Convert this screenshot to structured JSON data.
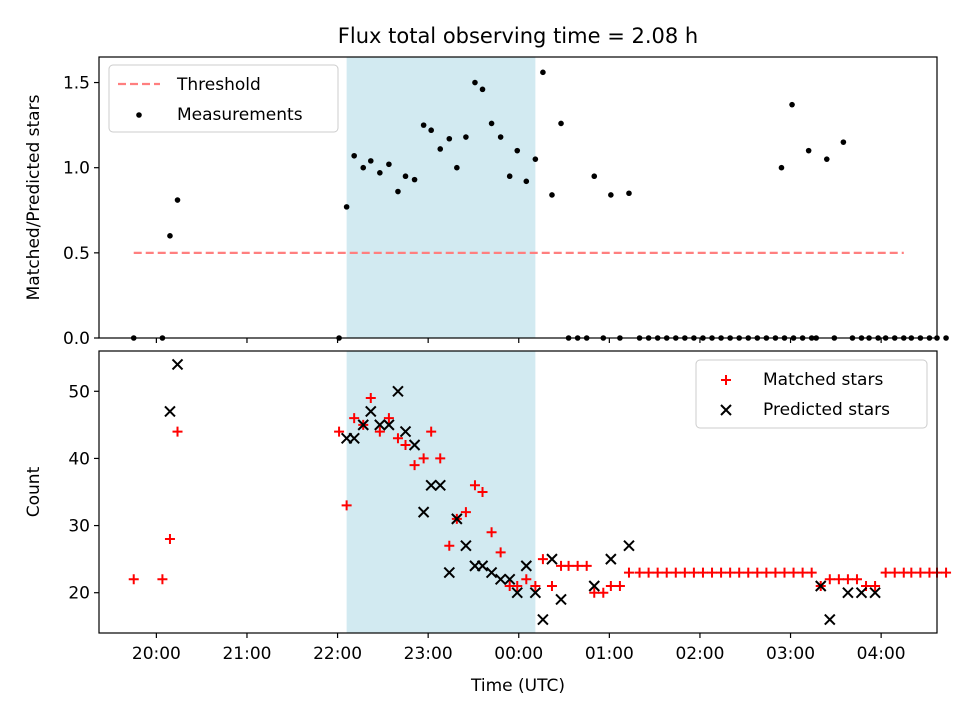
{
  "figure_title": "Flux total observing time = 2.08 h",
  "colors": {
    "threshold": "#ff7f7f",
    "measurement": "#000000",
    "matched": "#ff0000",
    "predicted": "#000000",
    "span": "#add8e6"
  },
  "chart_data": [
    {
      "type": "scatter",
      "title": "Flux total observing time = 2.08 h",
      "xlabel": "",
      "ylabel": "Matched/Predicted stars",
      "ylim": [
        0,
        1.65
      ],
      "yticks": [
        "0.0",
        "0.5",
        "1.0",
        "1.5"
      ],
      "grid": false,
      "legend": "top-left",
      "shaded_span": [
        "22:06",
        "00:11"
      ],
      "threshold": {
        "name": "Threshold",
        "y": 0.5,
        "x": [
          "19:45",
          "04:15"
        ]
      },
      "series": [
        {
          "name": "Measurements",
          "points": [
            [
              "19:45",
              0.0
            ],
            [
              "20:04",
              0.0
            ],
            [
              "20:09",
              0.6
            ],
            [
              "20:14",
              0.81
            ],
            [
              "22:01",
              0.0
            ],
            [
              "22:06",
              0.77
            ],
            [
              "22:11",
              1.07
            ],
            [
              "22:17",
              1.0
            ],
            [
              "22:22",
              1.04
            ],
            [
              "22:28",
              0.97
            ],
            [
              "22:34",
              1.02
            ],
            [
              "22:40",
              0.86
            ],
            [
              "22:45",
              0.95
            ],
            [
              "22:51",
              0.93
            ],
            [
              "22:57",
              1.25
            ],
            [
              "23:02",
              1.22
            ],
            [
              "23:08",
              1.11
            ],
            [
              "23:14",
              1.17
            ],
            [
              "23:19",
              1.0
            ],
            [
              "23:25",
              1.18
            ],
            [
              "23:31",
              1.5
            ],
            [
              "23:36",
              1.46
            ],
            [
              "23:42",
              1.26
            ],
            [
              "23:48",
              1.18
            ],
            [
              "23:54",
              0.95
            ],
            [
              "23:59",
              1.1
            ],
            [
              "00:05",
              0.92
            ],
            [
              "00:11",
              1.05
            ],
            [
              "00:16",
              1.56
            ],
            [
              "00:22",
              0.84
            ],
            [
              "00:28",
              1.26
            ],
            [
              "00:33",
              0.0
            ],
            [
              "00:39",
              0.0
            ],
            [
              "00:45",
              0.0
            ],
            [
              "00:50",
              0.95
            ],
            [
              "00:56",
              0.0
            ],
            [
              "01:01",
              0.84
            ],
            [
              "01:07",
              0.0
            ],
            [
              "01:13",
              0.85
            ],
            [
              "01:20",
              0.0
            ],
            [
              "01:26",
              0.0
            ],
            [
              "01:32",
              0.0
            ],
            [
              "01:38",
              0.0
            ],
            [
              "01:44",
              0.0
            ],
            [
              "01:50",
              0.0
            ],
            [
              "01:56",
              0.0
            ],
            [
              "02:02",
              0.0
            ],
            [
              "02:08",
              0.0
            ],
            [
              "02:14",
              0.0
            ],
            [
              "02:20",
              0.0
            ],
            [
              "02:26",
              0.0
            ],
            [
              "02:32",
              0.0
            ],
            [
              "02:38",
              0.0
            ],
            [
              "02:44",
              0.0
            ],
            [
              "02:50",
              0.0
            ],
            [
              "02:56",
              0.0
            ],
            [
              "03:02",
              0.0
            ],
            [
              "03:08",
              0.0
            ],
            [
              "03:14",
              0.0
            ],
            [
              "02:54",
              1.0
            ],
            [
              "03:01",
              1.37
            ],
            [
              "03:12",
              1.1
            ],
            [
              "03:24",
              1.05
            ],
            [
              "03:35",
              1.15
            ],
            [
              "03:17",
              0.0
            ],
            [
              "03:29",
              0.0
            ],
            [
              "03:41",
              0.0
            ],
            [
              "03:47",
              0.0
            ],
            [
              "03:52",
              0.0
            ],
            [
              "03:58",
              0.0
            ],
            [
              "04:03",
              0.0
            ],
            [
              "04:09",
              0.0
            ],
            [
              "04:15",
              0.0
            ],
            [
              "04:20",
              0.0
            ],
            [
              "04:26",
              0.0
            ],
            [
              "04:32",
              0.0
            ],
            [
              "04:37",
              0.0
            ],
            [
              "04:43",
              0.0
            ]
          ]
        }
      ]
    },
    {
      "type": "scatter",
      "title": "",
      "xlabel": "Time (UTC)",
      "ylabel": "Count",
      "ylim": [
        14,
        56
      ],
      "yticks": [
        "20",
        "30",
        "40",
        "50"
      ],
      "xticks": [
        "20:00",
        "21:00",
        "22:00",
        "23:00",
        "00:00",
        "01:00",
        "02:00",
        "03:00",
        "04:00"
      ],
      "grid": false,
      "legend": "top-right",
      "shaded_span": [
        "22:06",
        "00:11"
      ],
      "series": [
        {
          "name": "Matched stars",
          "marker": "plus",
          "points": [
            [
              "19:45",
              22
            ],
            [
              "20:04",
              22
            ],
            [
              "20:09",
              28
            ],
            [
              "20:14",
              44
            ],
            [
              "22:01",
              44
            ],
            [
              "22:06",
              33
            ],
            [
              "22:11",
              46
            ],
            [
              "22:17",
              45
            ],
            [
              "22:22",
              49
            ],
            [
              "22:28",
              44
            ],
            [
              "22:34",
              46
            ],
            [
              "22:40",
              43
            ],
            [
              "22:45",
              42
            ],
            [
              "22:51",
              39
            ],
            [
              "22:57",
              40
            ],
            [
              "23:02",
              44
            ],
            [
              "23:08",
              40
            ],
            [
              "23:14",
              27
            ],
            [
              "23:19",
              31
            ],
            [
              "23:25",
              32
            ],
            [
              "23:31",
              36
            ],
            [
              "23:36",
              35
            ],
            [
              "23:42",
              29
            ],
            [
              "23:48",
              26
            ],
            [
              "23:54",
              21
            ],
            [
              "23:59",
              21
            ],
            [
              "00:05",
              22
            ],
            [
              "00:11",
              21
            ],
            [
              "00:16",
              25
            ],
            [
              "00:22",
              21
            ],
            [
              "00:28",
              24
            ],
            [
              "00:33",
              24
            ],
            [
              "00:39",
              24
            ],
            [
              "00:45",
              24
            ],
            [
              "00:50",
              20
            ],
            [
              "00:56",
              20
            ],
            [
              "01:01",
              21
            ],
            [
              "01:07",
              21
            ],
            [
              "01:13",
              23
            ],
            [
              "01:20",
              23
            ],
            [
              "01:26",
              23
            ],
            [
              "01:32",
              23
            ],
            [
              "01:38",
              23
            ],
            [
              "01:44",
              23
            ],
            [
              "01:50",
              23
            ],
            [
              "01:56",
              23
            ],
            [
              "02:02",
              23
            ],
            [
              "02:08",
              23
            ],
            [
              "02:14",
              23
            ],
            [
              "02:20",
              23
            ],
            [
              "02:26",
              23
            ],
            [
              "02:32",
              23
            ],
            [
              "02:38",
              23
            ],
            [
              "02:44",
              23
            ],
            [
              "02:50",
              23
            ],
            [
              "02:56",
              23
            ],
            [
              "03:02",
              23
            ],
            [
              "03:08",
              23
            ],
            [
              "03:14",
              23
            ],
            [
              "03:20",
              21
            ],
            [
              "03:26",
              22
            ],
            [
              "03:32",
              22
            ],
            [
              "03:38",
              22
            ],
            [
              "03:44",
              22
            ],
            [
              "03:50",
              21
            ],
            [
              "03:56",
              21
            ],
            [
              "04:03",
              23
            ],
            [
              "04:09",
              23
            ],
            [
              "04:15",
              23
            ],
            [
              "04:20",
              23
            ],
            [
              "04:26",
              23
            ],
            [
              "04:32",
              23
            ],
            [
              "04:37",
              23
            ],
            [
              "04:43",
              23
            ]
          ]
        },
        {
          "name": "Predicted stars",
          "marker": "x",
          "points": [
            [
              "20:09",
              47
            ],
            [
              "20:14",
              54
            ],
            [
              "22:06",
              43
            ],
            [
              "22:11",
              43
            ],
            [
              "22:17",
              45
            ],
            [
              "22:22",
              47
            ],
            [
              "22:28",
              45
            ],
            [
              "22:34",
              45
            ],
            [
              "22:40",
              50
            ],
            [
              "22:45",
              44
            ],
            [
              "22:51",
              42
            ],
            [
              "22:57",
              32
            ],
            [
              "23:02",
              36
            ],
            [
              "23:08",
              36
            ],
            [
              "23:14",
              23
            ],
            [
              "23:19",
              31
            ],
            [
              "23:25",
              27
            ],
            [
              "23:31",
              24
            ],
            [
              "23:36",
              24
            ],
            [
              "23:42",
              23
            ],
            [
              "23:48",
              22
            ],
            [
              "23:54",
              22
            ],
            [
              "23:59",
              20
            ],
            [
              "00:05",
              24
            ],
            [
              "00:11",
              20
            ],
            [
              "00:16",
              16
            ],
            [
              "00:22",
              25
            ],
            [
              "00:28",
              19
            ],
            [
              "00:50",
              21
            ],
            [
              "01:01",
              25
            ],
            [
              "01:13",
              27
            ],
            [
              "03:20",
              21
            ],
            [
              "03:26",
              16
            ],
            [
              "03:38",
              20
            ],
            [
              "03:47",
              20
            ],
            [
              "03:56",
              20
            ]
          ]
        }
      ]
    }
  ]
}
